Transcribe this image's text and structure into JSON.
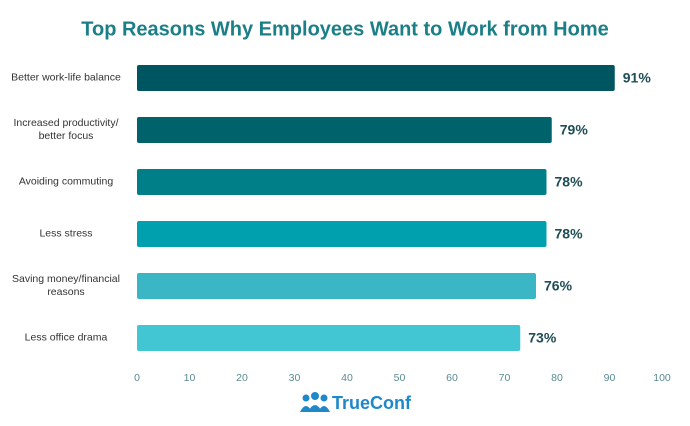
{
  "chart_data": {
    "type": "bar",
    "orientation": "horizontal",
    "title": "Top Reasons Why Employees Want to Work from Home",
    "categories": [
      "Better work-life balance",
      "Increased productivity/ better focus",
      "Avoiding commuting",
      "Less stress",
      "Saving money/financial reasons",
      "Less office drama"
    ],
    "values": [
      91,
      79,
      78,
      78,
      76,
      73
    ],
    "value_labels": [
      "91%",
      "79%",
      "78%",
      "78%",
      "76%",
      "73%"
    ],
    "colors": [
      "#005660",
      "#00636c",
      "#007f88",
      "#00a0ae",
      "#3ab6c4",
      "#42c6d3"
    ],
    "xlim": [
      0,
      100
    ],
    "xticks": [
      0,
      10,
      20,
      30,
      40,
      50,
      60,
      70,
      80,
      90,
      100
    ],
    "grid": false,
    "logo": "TrueConf"
  }
}
